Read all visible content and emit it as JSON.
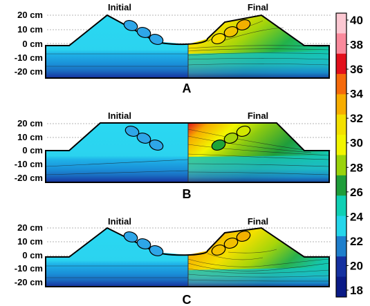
{
  "y_tick_labels": [
    "20 cm",
    "10 cm",
    "0 cm",
    "-10 cm",
    "-20 cm"
  ],
  "panels": [
    {
      "letter": "A",
      "initial_label": "Initial",
      "final_label": "Final",
      "final_ellipse_colors": [
        "#f8dc00",
        "#f2c400",
        "#f2b000"
      ]
    },
    {
      "letter": "B",
      "initial_label": "Initial",
      "final_label": "Final",
      "final_ellipse_colors": [
        "#1ea437",
        "#a6d50a",
        "#d2e800"
      ]
    },
    {
      "letter": "C",
      "initial_label": "Initial",
      "final_label": "Final",
      "final_ellipse_colors": [
        "#f4c200",
        "#f2c000",
        "#f2b000"
      ]
    }
  ],
  "colorbar": {
    "labels": [
      "40",
      "38",
      "36",
      "34",
      "32",
      "30",
      "28",
      "26",
      "24",
      "22",
      "20",
      "18"
    ],
    "colors": [
      "#fcc8d2",
      "#fa8a9c",
      "#e2101c",
      "#f56a0c",
      "#f7ad00",
      "#f3e000",
      "#f2f500",
      "#9ad30c",
      "#1f9d3a",
      "#10d0b4",
      "#25d6ea",
      "#1e7fcc",
      "#1531a0",
      "#0a1a86"
    ]
  },
  "colors": {
    "initial_top": "#2ad8f2",
    "initial_mid": "#1a9de0",
    "initial_deep": "#1a76c8",
    "initial_bottom": "#16319e",
    "ellipse_initial": "#2ea6e8"
  }
}
